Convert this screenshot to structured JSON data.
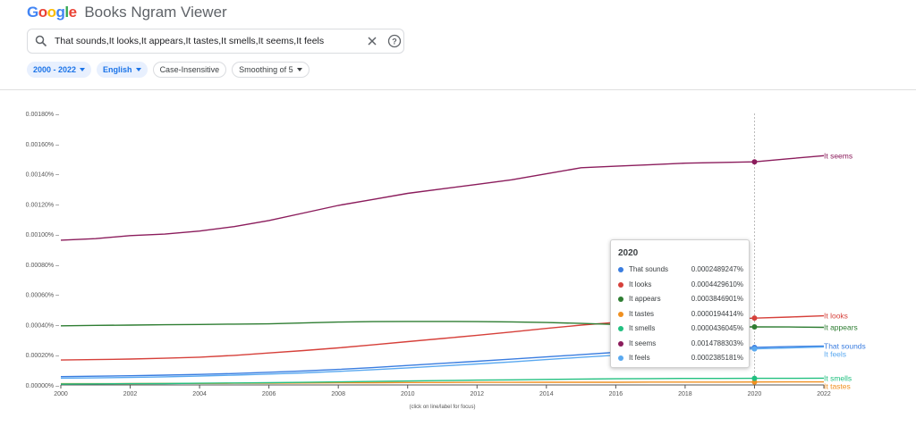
{
  "header": {
    "brand": "Google",
    "title": "Books Ngram Viewer"
  },
  "search": {
    "query": "That sounds,It looks,It appears,It tastes,It smells,It seems,It feels"
  },
  "filters": [
    {
      "label": "2000 - 2022",
      "selected": true,
      "dropdown": true
    },
    {
      "label": "English",
      "selected": true,
      "dropdown": true
    },
    {
      "label": "Case-Insensitive",
      "selected": false,
      "dropdown": false
    },
    {
      "label": "Smoothing of 5",
      "selected": false,
      "dropdown": true
    }
  ],
  "chart_data": {
    "type": "line",
    "x_label_note": "(click on line/label for focus)",
    "xlim": [
      2000,
      2022
    ],
    "ylim": [
      0,
      0.0018
    ],
    "x_ticks": [
      "2000",
      "2002",
      "2004",
      "2006",
      "2008",
      "2010",
      "2012",
      "2014",
      "2016",
      "2018",
      "2020",
      "2022"
    ],
    "y_ticks": [
      "0.00000%",
      "0.00020%",
      "0.00040%",
      "0.00060%",
      "0.00080%",
      "0.00100%",
      "0.00120%",
      "0.00140%",
      "0.00160%",
      "0.00180%"
    ],
    "x": [
      2000,
      2001,
      2002,
      2003,
      2004,
      2005,
      2006,
      2007,
      2008,
      2009,
      2010,
      2011,
      2012,
      2013,
      2014,
      2015,
      2016,
      2017,
      2018,
      2019,
      2020,
      2021,
      2022
    ],
    "grid": false,
    "focus_year": 2020,
    "series": [
      {
        "name": "That sounds",
        "color": "#3a7de0",
        "values": [
          5.5e-05,
          5.8e-05,
          6.1e-05,
          6.5e-05,
          7e-05,
          7.6e-05,
          8.4e-05,
          9.3e-05,
          0.000103,
          0.000115,
          0.000129,
          0.000143,
          0.000157,
          0.000171,
          0.000186,
          0.000201,
          0.000216,
          0.000228,
          0.000237,
          0.000243,
          0.000249,
          0.000254,
          0.000258
        ]
      },
      {
        "name": "It looks",
        "color": "#d6403a",
        "values": [
          0.000165,
          0.000168,
          0.000172,
          0.000177,
          0.000184,
          0.000196,
          0.000212,
          0.000228,
          0.000246,
          0.000266,
          0.000287,
          0.000308,
          0.000329,
          0.000351,
          0.000375,
          0.000397,
          0.000415,
          0.000427,
          0.000432,
          0.000436,
          0.000443,
          0.00045,
          0.000458
        ]
      },
      {
        "name": "It appears",
        "color": "#2e7d32",
        "values": [
          0.000392,
          0.000395,
          0.000397,
          0.000399,
          0.000401,
          0.000403,
          0.000405,
          0.000411,
          0.000417,
          0.00042,
          0.000421,
          0.000421,
          0.00042,
          0.000418,
          0.000414,
          0.000408,
          0.000401,
          0.000394,
          0.000389,
          0.000386,
          0.000385,
          0.000384,
          0.000382
        ]
      },
      {
        "name": "It tastes",
        "color": "#f09020",
        "values": [
          8e-06,
          8e-06,
          9e-06,
          1e-05,
          1e-05,
          1.1e-05,
          1.2e-05,
          1.3e-05,
          1.4e-05,
          1.5e-05,
          1.6e-05,
          1.6e-05,
          1.7e-05,
          1.7e-05,
          1.8e-05,
          1.8e-05,
          1.8e-05,
          1.9e-05,
          1.9e-05,
          1.9e-05,
          1.94e-05,
          2e-05,
          2e-05
        ]
      },
      {
        "name": "It smells",
        "color": "#22c080",
        "values": [
          6e-06,
          7e-06,
          8e-06,
          9e-06,
          1.1e-05,
          1.3e-05,
          1.5e-05,
          1.7e-05,
          2e-05,
          2.3e-05,
          2.6e-05,
          2.9e-05,
          3.2e-05,
          3.4e-05,
          3.7e-05,
          3.9e-05,
          4.1e-05,
          4.2e-05,
          4.3e-05,
          4.3e-05,
          4.36e-05,
          4.4e-05,
          4.5e-05
        ]
      },
      {
        "name": "It seems",
        "color": "#8b1c5c",
        "values": [
          0.00096,
          0.00097,
          0.00099,
          0.001,
          0.00102,
          0.00105,
          0.00109,
          0.00114,
          0.00119,
          0.00123,
          0.00127,
          0.0013,
          0.00133,
          0.00136,
          0.0014,
          0.00144,
          0.00145,
          0.00146,
          0.00147,
          0.001475,
          0.001479,
          0.0015,
          0.00152
        ]
      },
      {
        "name": "It feels",
        "color": "#5aa9f0",
        "values": [
          4.5e-05,
          4.7e-05,
          5e-05,
          5.4e-05,
          5.9e-05,
          6.5e-05,
          7.2e-05,
          8e-05,
          9e-05,
          0.000101,
          0.000113,
          0.000126,
          0.000139,
          0.000153,
          0.000168,
          0.000183,
          0.000197,
          0.00021,
          0.00022,
          0.000231,
          0.000239,
          0.000246,
          0.000252
        ]
      }
    ]
  },
  "tooltip": {
    "year": "2020",
    "rows": [
      {
        "name": "That sounds",
        "value": "0.0002489247%",
        "color": "#3a7de0"
      },
      {
        "name": "It looks",
        "value": "0.0004429610%",
        "color": "#d6403a"
      },
      {
        "name": "It appears",
        "value": "0.0003846901%",
        "color": "#2e7d32"
      },
      {
        "name": "It tastes",
        "value": "0.0000194414%",
        "color": "#f09020"
      },
      {
        "name": "It smells",
        "value": "0.0000436045%",
        "color": "#22c080"
      },
      {
        "name": "It seems",
        "value": "0.0014788303%",
        "color": "#8b1c5c"
      },
      {
        "name": "It feels",
        "value": "0.0002385181%",
        "color": "#5aa9f0"
      }
    ]
  }
}
